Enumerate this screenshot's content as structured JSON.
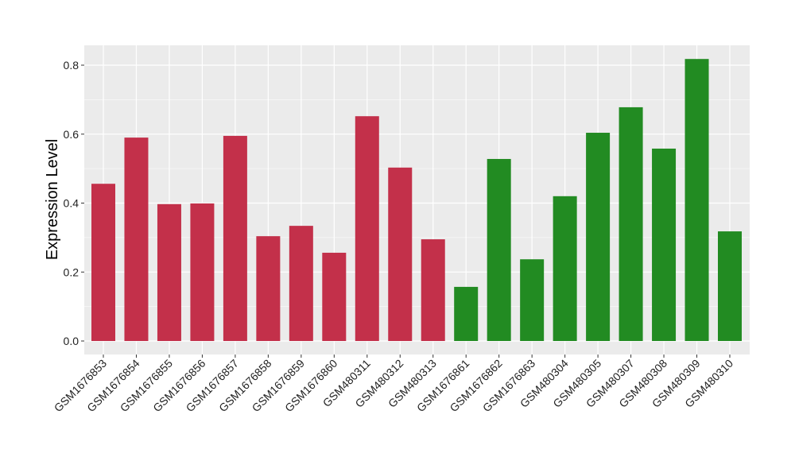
{
  "chart_data": {
    "type": "bar",
    "title": "",
    "xlabel": "",
    "ylabel": "Expression Level",
    "ylim": [
      -0.04,
      0.855
    ],
    "yticks": [
      0.0,
      0.2,
      0.4,
      0.6,
      0.8
    ],
    "ytick_labels": [
      "0.0",
      "0.2",
      "0.4",
      "0.6",
      "0.8"
    ],
    "grid": true,
    "categories": [
      "GSM1676853",
      "GSM1676854",
      "GSM1676855",
      "GSM1676856",
      "GSM1676857",
      "GSM1676858",
      "GSM1676859",
      "GSM1676860",
      "GSM480311",
      "GSM480312",
      "GSM480313",
      "GSM1676861",
      "GSM1676862",
      "GSM1676863",
      "GSM480304",
      "GSM480305",
      "GSM480307",
      "GSM480308",
      "GSM480309",
      "GSM480310"
    ],
    "values": [
      0.456,
      0.59,
      0.397,
      0.399,
      0.595,
      0.304,
      0.334,
      0.256,
      0.652,
      0.503,
      0.295,
      0.157,
      0.528,
      0.237,
      0.42,
      0.604,
      0.678,
      0.558,
      0.818,
      0.318
    ],
    "groups": [
      "red",
      "red",
      "red",
      "red",
      "red",
      "red",
      "red",
      "red",
      "red",
      "red",
      "red",
      "green",
      "green",
      "green",
      "green",
      "green",
      "green",
      "green",
      "green",
      "green"
    ],
    "colors": {
      "red": "#C3304A",
      "green": "#228B22",
      "panel": "#EBEBEB",
      "grid": "#FFFFFF"
    }
  }
}
